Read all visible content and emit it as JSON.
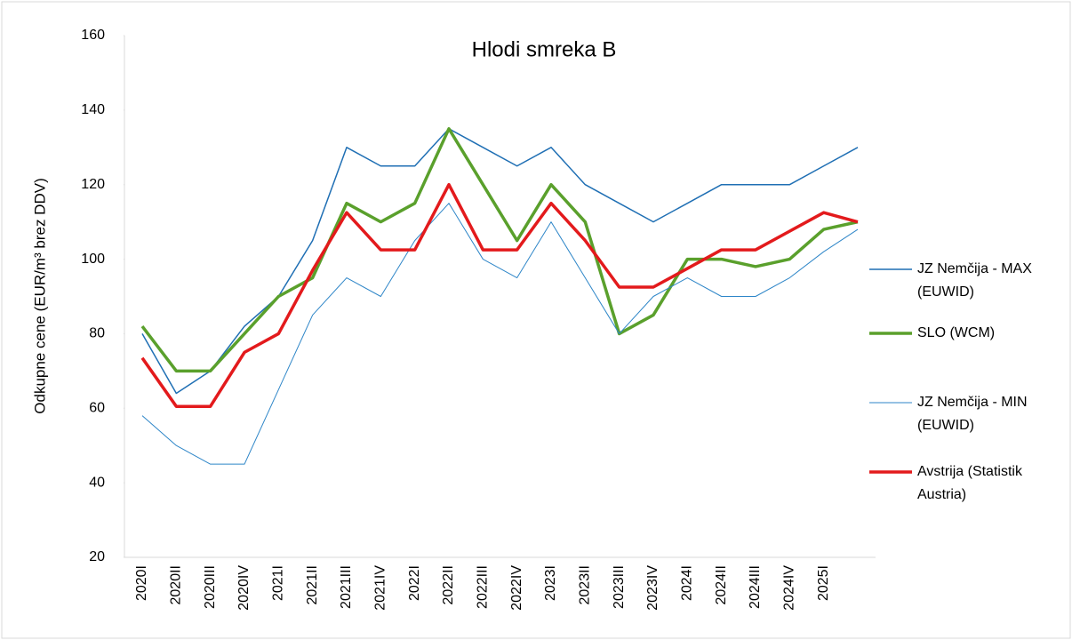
{
  "chart_data": {
    "type": "line",
    "title": "Hlodi smreka B",
    "y_label": "Odkupne cene (EUR/m³ brez DDV)",
    "categories": [
      "2020I",
      "2020II",
      "2020III",
      "2020IV",
      "2021I",
      "2021II",
      "2021III",
      "2021IV",
      "2022I",
      "2022II",
      "2022III",
      "2022IV",
      "2023I",
      "2023II",
      "2023III",
      "2023IV",
      "2024I",
      "2024II",
      "2024III",
      "2024IV",
      "2025I",
      null
    ],
    "series": [
      {
        "name": "JZ Nemčija - MAX (EUWID)",
        "color": "#1f6fb4",
        "values": [
          80,
          64,
          70,
          82,
          90,
          105,
          130,
          125,
          125,
          135,
          130,
          125,
          130,
          120,
          115,
          110,
          115,
          120,
          120,
          120,
          125,
          130
        ]
      },
      {
        "name": "SLO (WCM)",
        "color": "#5aa02c",
        "values": [
          82,
          70,
          70,
          80,
          90,
          95,
          115,
          110,
          115,
          135,
          120,
          105,
          120,
          110,
          80,
          85,
          100,
          100,
          98,
          100,
          108,
          110
        ]
      },
      {
        "name": "JZ Nemčija - MIN (EUWID)",
        "color": "#2e86c8",
        "values": [
          58,
          50,
          45,
          45,
          65,
          85,
          95,
          90,
          105,
          115,
          100,
          95,
          110,
          95,
          80,
          90,
          95,
          90,
          90,
          95,
          102,
          108
        ]
      },
      {
        "name": "Avstrija (Statistik Austria)",
        "color": "#e31a1c",
        "values": [
          73.5,
          60.5,
          60.5,
          75,
          80,
          97,
          112.5,
          102.5,
          102.5,
          120,
          102.5,
          102.5,
          115,
          105,
          92.5,
          92.5,
          97.5,
          102.5,
          102.5,
          107.5,
          112.5,
          110
        ]
      }
    ],
    "ylim": [
      20,
      160
    ],
    "yticks": [
      20,
      40,
      60,
      80,
      100,
      120,
      140,
      160
    ],
    "grid": false,
    "legend": "right"
  }
}
